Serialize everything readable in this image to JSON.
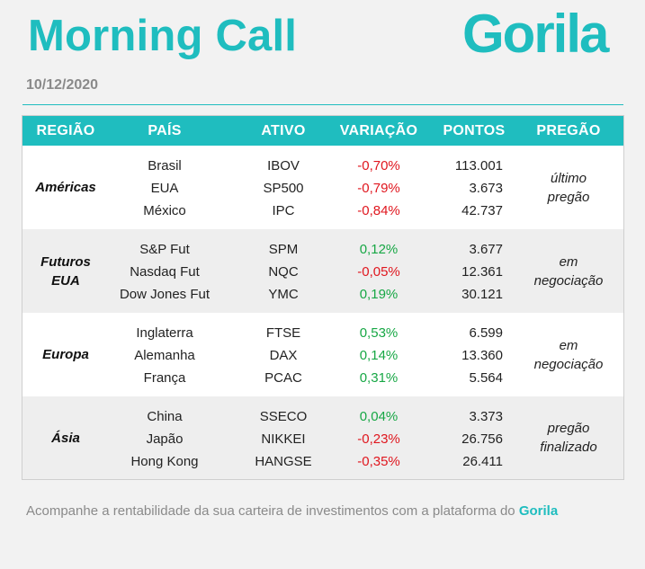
{
  "header": {
    "title": "Morning Call",
    "logo": "Gorila",
    "date": "10/12/2020",
    "accent_color": "#1fbdbf"
  },
  "table": {
    "columns": [
      "REGIÃO",
      "PAÍS",
      "ATIVO",
      "VARIAÇÃO",
      "PONTOS",
      "PREGÃO"
    ],
    "groups": [
      {
        "region_lines": [
          "Américas"
        ],
        "pregao_lines": [
          "último",
          "pregão"
        ],
        "rows": [
          {
            "pais": "Brasil",
            "ativo": "IBOV",
            "variacao": "-0,70%",
            "pontos": "113.001"
          },
          {
            "pais": "EUA",
            "ativo": "SP500",
            "variacao": "-0,79%",
            "pontos": "3.673"
          },
          {
            "pais": "México",
            "ativo": "IPC",
            "variacao": "-0,84%",
            "pontos": "42.737"
          }
        ]
      },
      {
        "region_lines": [
          "Futuros",
          "EUA"
        ],
        "pregao_lines": [
          "em",
          "negociação"
        ],
        "rows": [
          {
            "pais": "S&P Fut",
            "ativo": "SPM",
            "variacao": "0,12%",
            "pontos": "3.677"
          },
          {
            "pais": "Nasdaq Fut",
            "ativo": "NQC",
            "variacao": "-0,05%",
            "pontos": "12.361"
          },
          {
            "pais": "Dow Jones Fut",
            "ativo": "YMC",
            "variacao": "0,19%",
            "pontos": "30.121"
          }
        ]
      },
      {
        "region_lines": [
          "Europa"
        ],
        "pregao_lines": [
          "em",
          "negociação"
        ],
        "rows": [
          {
            "pais": "Inglaterra",
            "ativo": "FTSE",
            "variacao": "0,53%",
            "pontos": "6.599"
          },
          {
            "pais": "Alemanha",
            "ativo": "DAX",
            "variacao": "0,14%",
            "pontos": "13.360"
          },
          {
            "pais": "França",
            "ativo": "PCAC",
            "variacao": "0,31%",
            "pontos": "5.564"
          }
        ]
      },
      {
        "region_lines": [
          "Ásia"
        ],
        "pregao_lines": [
          "pregão",
          "finalizado"
        ],
        "rows": [
          {
            "pais": "China",
            "ativo": "SSECO",
            "variacao": "0,04%",
            "pontos": "3.373"
          },
          {
            "pais": "Japão",
            "ativo": "NIKKEI",
            "variacao": "-0,23%",
            "pontos": "26.756"
          },
          {
            "pais": "Hong Kong",
            "ativo": "HANGSE",
            "variacao": "-0,35%",
            "pontos": "26.411"
          }
        ]
      }
    ],
    "positive_color": "#17a745",
    "negative_color": "#e0161e"
  },
  "footer": {
    "text": "Acompanhe a rentabilidade da sua carteira de investimentos com a plataforma do",
    "brand": "Gorila"
  }
}
